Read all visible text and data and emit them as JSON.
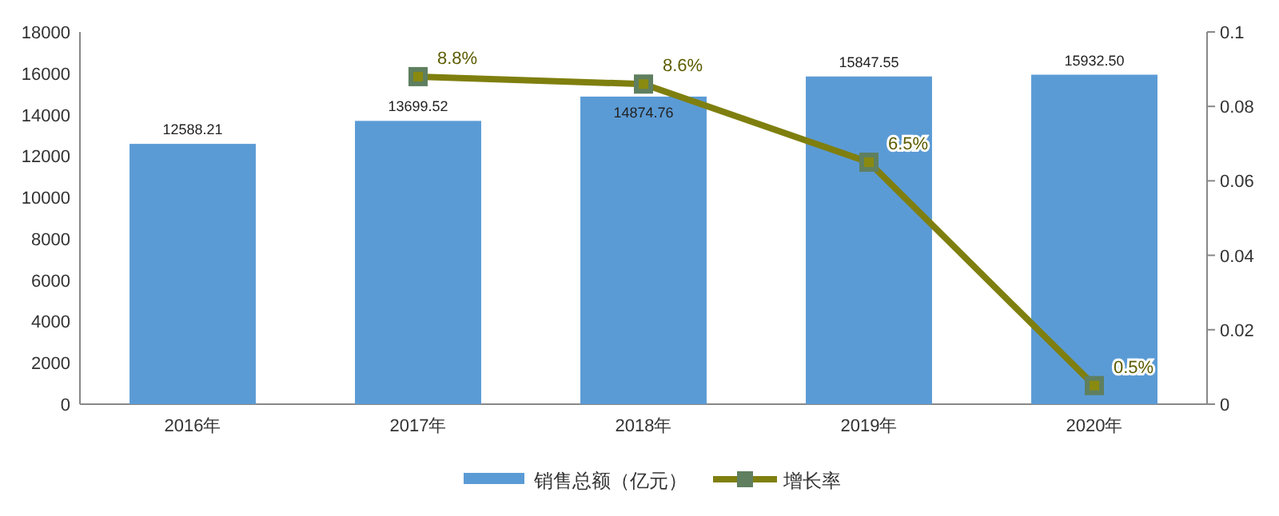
{
  "chart_data": {
    "type": "bar",
    "categories": [
      "2016年",
      "2017年",
      "2018年",
      "2019年",
      "2020年"
    ],
    "series": [
      {
        "name": "销售总额（亿元）",
        "color": "#5b9bd5",
        "values": [
          12588.21,
          13699.52,
          14874.76,
          15847.55,
          15932.5
        ],
        "value_labels": [
          "12588.21",
          "13699.52",
          "14874.76",
          "15847.55",
          "15932.50"
        ]
      },
      {
        "name": "增长率",
        "type": "line",
        "axis": "y2",
        "color": "#7f7f0f",
        "marker": "square",
        "values": [
          null,
          0.088,
          0.086,
          0.065,
          0.005
        ],
        "value_labels": [
          null,
          "8.8%",
          "8.6%",
          "6.5%",
          "0.5%"
        ]
      }
    ],
    "ylim": [
      0,
      18000
    ],
    "yticks": [
      0,
      2000,
      4000,
      6000,
      8000,
      10000,
      12000,
      14000,
      16000,
      18000
    ],
    "y2lim": [
      0,
      0.1
    ],
    "y2ticks": [
      0,
      0.02,
      0.04,
      0.06,
      0.08,
      0.1
    ],
    "grid": false,
    "legend": "bottom"
  }
}
